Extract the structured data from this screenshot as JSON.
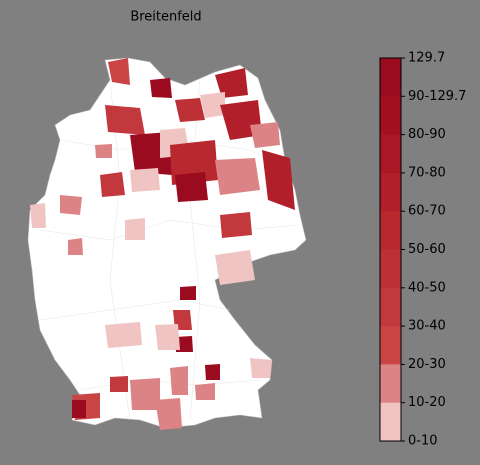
{
  "title": "Breitenfeld",
  "legend": {
    "labels": [
      "129.7",
      "90-129.7",
      "80-90",
      "70-80",
      "60-70",
      "50-60",
      "40-50",
      "30-40",
      "20-30",
      "10-20",
      "0-10"
    ],
    "colors": [
      "#9b0b1f",
      "#a3111f",
      "#aa1825",
      "#b1202a",
      "#b7282f",
      "#bd3036",
      "#c3383d",
      "#c94445",
      "#dc8485",
      "#f1c4c4",
      "#ffffff"
    ]
  }
}
